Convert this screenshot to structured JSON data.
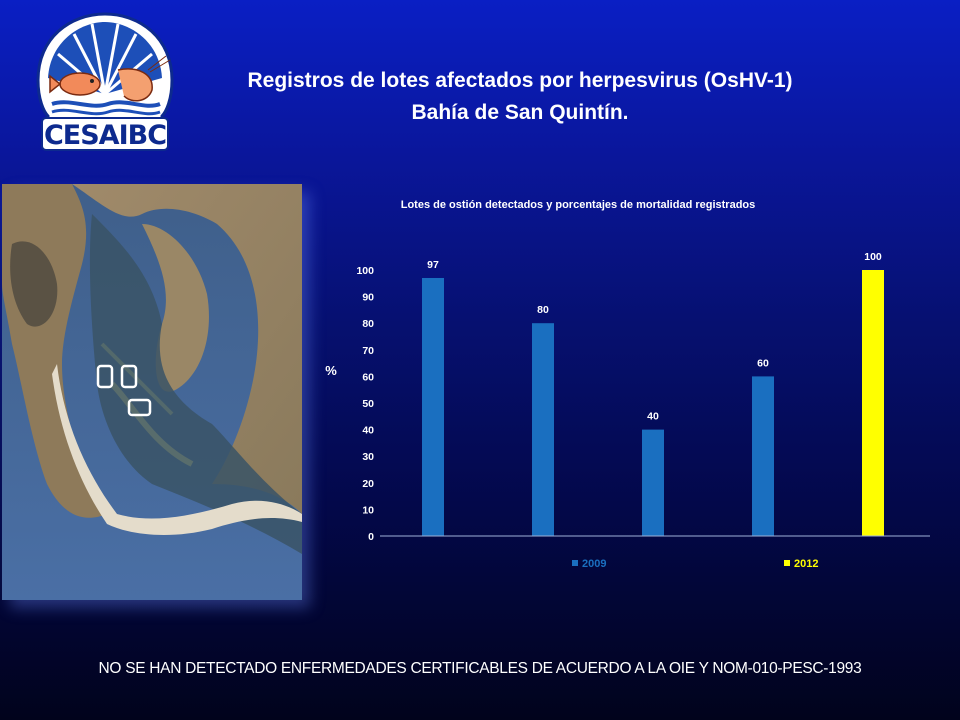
{
  "header": {
    "logo_text": "CESAIBC",
    "title_line1": "Registros de lotes afectados por herpesvirus (OsHV-1)",
    "title_line2": "Bahía de San Quintín."
  },
  "footer": {
    "text": "NO SE HAN DETECTADO ENFERMEDADES CERTIFICABLES DE ACUERDO A LA OIE Y NOM-010-PESC-1993"
  },
  "colors": {
    "series_2009": "#1a6fc0",
    "series_2012": "#ffff00",
    "chart_text": "#ffffff"
  },
  "chart_data": {
    "type": "bar",
    "title": "Lotes de ostión detectados   y porcentajes  de mortalidad registrados",
    "xlabel": "",
    "ylabel": "%",
    "ylim": [
      0,
      100
    ],
    "yticks": [
      0,
      10,
      20,
      30,
      40,
      50,
      60,
      70,
      80,
      90,
      100
    ],
    "grid": false,
    "legend": "bottom",
    "bars": [
      {
        "value": 97,
        "series": "2009"
      },
      {
        "value": 80,
        "series": "2009"
      },
      {
        "value": 40,
        "series": "2009"
      },
      {
        "value": 60,
        "series": "2009"
      },
      {
        "value": 100,
        "series": "2012"
      }
    ],
    "series": [
      {
        "name": "2009",
        "values": [
          97,
          80,
          40,
          60,
          null
        ]
      },
      {
        "name": "2012",
        "values": [
          null,
          null,
          null,
          null,
          100
        ]
      }
    ]
  }
}
